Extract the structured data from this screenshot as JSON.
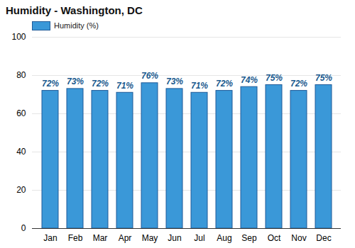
{
  "chart_data": {
    "type": "bar",
    "title": "Humidity - Washington, DC",
    "categories": [
      "Jan",
      "Feb",
      "Mar",
      "Apr",
      "May",
      "Jun",
      "Jul",
      "Aug",
      "Sep",
      "Oct",
      "Nov",
      "Dec"
    ],
    "series": [
      {
        "name": "Humidity (%)",
        "color": "#3a98d8",
        "values": [
          72,
          73,
          72,
          71,
          76,
          73,
          71,
          72,
          74,
          75,
          72,
          75
        ],
        "value_labels": [
          "72%",
          "73%",
          "72%",
          "71%",
          "76%",
          "73%",
          "71%",
          "72%",
          "74%",
          "75%",
          "72%",
          "75%"
        ]
      }
    ],
    "ylim": [
      0,
      100
    ],
    "yticks": [
      0,
      20,
      40,
      60,
      80,
      100
    ],
    "grid": true,
    "data_labels": true,
    "legend": "top-left"
  }
}
